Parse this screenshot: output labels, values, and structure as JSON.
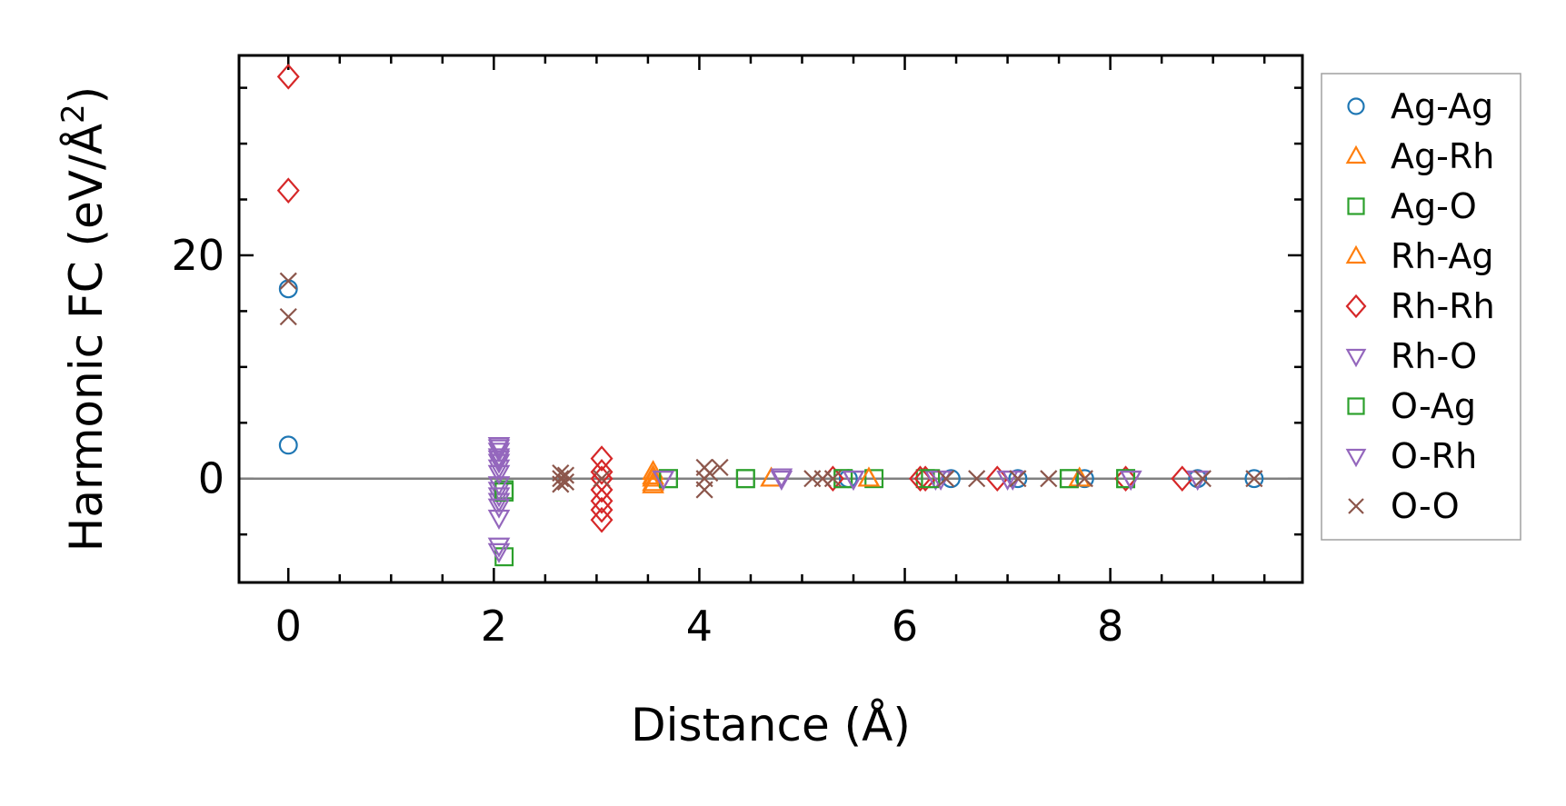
{
  "chart_data": {
    "type": "scatter",
    "title": "",
    "xlabel": "Distance (Å)",
    "ylabel": "Harmonic FC (eV/Å²)",
    "ylabel_parts": {
      "main": "Harmonic FC (eV/Å",
      "sup": "2",
      "close": ")"
    },
    "xlim": [
      -0.48,
      9.87
    ],
    "ylim": [
      -9.3,
      37.9
    ],
    "xticks": [
      0,
      2,
      4,
      6,
      8
    ],
    "xtick_labels": [
      "0",
      "2",
      "4",
      "6",
      "8"
    ],
    "yticks": [
      0,
      20
    ],
    "ytick_labels": [
      "0",
      "20"
    ],
    "grid": false,
    "zero_line": true,
    "legend_position": "outside-right",
    "series": [
      {
        "name": "Ag-Ag",
        "marker": "circle",
        "color": "#1f77b4",
        "points": [
          [
            0,
            17
          ],
          [
            0,
            3
          ],
          [
            5.45,
            0
          ],
          [
            6.45,
            0
          ],
          [
            7.1,
            0
          ],
          [
            7.75,
            0
          ],
          [
            8.85,
            0
          ],
          [
            9.4,
            0
          ]
        ]
      },
      {
        "name": "Ag-Rh",
        "marker": "triangle-up",
        "color": "#ff7f0e",
        "points": [
          [
            3.55,
            -0.6
          ],
          [
            3.55,
            0
          ],
          [
            3.55,
            0.6
          ],
          [
            4.7,
            0
          ],
          [
            5.65,
            0
          ],
          [
            7.7,
            0
          ]
        ]
      },
      {
        "name": "Ag-O",
        "marker": "square",
        "color": "#2ca02c",
        "points": [
          [
            2.1,
            -1
          ],
          [
            2.1,
            -7
          ],
          [
            3.7,
            0
          ],
          [
            4.45,
            0
          ],
          [
            5.4,
            0
          ],
          [
            5.7,
            0
          ],
          [
            6.2,
            0
          ],
          [
            7.6,
            0
          ],
          [
            8.15,
            0
          ]
        ]
      },
      {
        "name": "Rh-Ag",
        "marker": "triangle-up",
        "color": "#ff7f0e",
        "points": [
          [
            3.55,
            -0.4
          ],
          [
            3.55,
            0.2
          ],
          [
            4.7,
            0
          ],
          [
            5.65,
            0
          ],
          [
            7.7,
            0
          ]
        ]
      },
      {
        "name": "Rh-Rh",
        "marker": "diamond",
        "color": "#d62728",
        "points": [
          [
            0,
            36
          ],
          [
            0,
            25.8
          ],
          [
            3.05,
            1.8
          ],
          [
            3.05,
            0.6
          ],
          [
            3.05,
            0
          ],
          [
            3.05,
            -1
          ],
          [
            3.05,
            -2
          ],
          [
            3.05,
            -2.8
          ],
          [
            3.05,
            -3.7
          ],
          [
            5.3,
            0
          ],
          [
            6.15,
            0
          ],
          [
            6.2,
            0
          ],
          [
            6.9,
            0
          ],
          [
            8.15,
            0
          ],
          [
            8.7,
            0
          ]
        ]
      },
      {
        "name": "Rh-O",
        "marker": "triangle-down",
        "color": "#9467bd",
        "points": [
          [
            2.05,
            3
          ],
          [
            2.05,
            2.5
          ],
          [
            2.05,
            2
          ],
          [
            2.05,
            1.5
          ],
          [
            2.05,
            1
          ],
          [
            2.05,
            -1
          ],
          [
            2.05,
            -1.5
          ],
          [
            2.05,
            -2
          ],
          [
            2.05,
            -3.5
          ],
          [
            2.05,
            -6
          ],
          [
            3.65,
            0
          ],
          [
            4.8,
            0
          ],
          [
            5.5,
            0
          ],
          [
            6.3,
            0
          ],
          [
            7.05,
            0
          ],
          [
            8.2,
            0
          ],
          [
            8.85,
            0
          ]
        ]
      },
      {
        "name": "O-Ag",
        "marker": "square",
        "color": "#2ca02c",
        "points": [
          [
            2.1,
            -1.2
          ],
          [
            3.7,
            0
          ],
          [
            4.45,
            0
          ],
          [
            5.4,
            0
          ],
          [
            6.25,
            0
          ],
          [
            7.6,
            0
          ],
          [
            8.15,
            0
          ]
        ]
      },
      {
        "name": "O-Rh",
        "marker": "triangle-down",
        "color": "#9467bd",
        "points": [
          [
            2.05,
            2.8
          ],
          [
            2.05,
            1.8
          ],
          [
            2.05,
            0.5
          ],
          [
            2.05,
            -0.5
          ],
          [
            2.05,
            -2.5
          ],
          [
            2.05,
            -6.5
          ],
          [
            3.65,
            0
          ],
          [
            4.8,
            0.2
          ],
          [
            5.5,
            0
          ],
          [
            6.35,
            0
          ],
          [
            7.0,
            0
          ],
          [
            8.2,
            0
          ],
          [
            8.85,
            0
          ]
        ]
      },
      {
        "name": "O-O",
        "marker": "x",
        "color": "#8c564b",
        "points": [
          [
            0,
            17.7
          ],
          [
            0,
            14.5
          ],
          [
            2.65,
            0.5
          ],
          [
            2.65,
            0
          ],
          [
            2.65,
            -0.5
          ],
          [
            2.7,
            0.3
          ],
          [
            2.7,
            -0.3
          ],
          [
            3.05,
            0
          ],
          [
            4.05,
            1
          ],
          [
            4.05,
            0
          ],
          [
            4.05,
            -1
          ],
          [
            4.1,
            0.5
          ],
          [
            4.2,
            1
          ],
          [
            5.1,
            0
          ],
          [
            5.2,
            0
          ],
          [
            5.3,
            0
          ],
          [
            6.4,
            0
          ],
          [
            6.7,
            0
          ],
          [
            7.1,
            0
          ],
          [
            7.4,
            0
          ],
          [
            7.75,
            0
          ],
          [
            8.9,
            0
          ],
          [
            9.4,
            0
          ]
        ]
      }
    ]
  }
}
